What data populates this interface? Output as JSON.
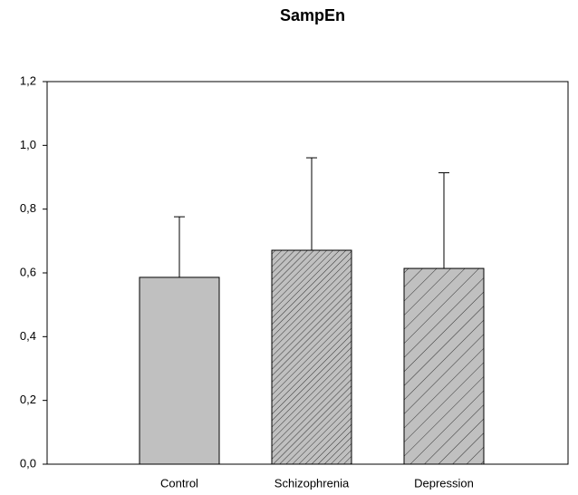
{
  "chart_data": {
    "type": "bar",
    "title": "SampEn",
    "categories": [
      "Control",
      "Schizophrenia",
      "Depression"
    ],
    "values": [
      0.586,
      0.671,
      0.614
    ],
    "errors": [
      0.19,
      0.29,
      0.3
    ],
    "colors": [
      "#c0c0c0",
      "url(#hatch-dense)",
      "url(#hatch-sparse)"
    ],
    "ylim": [
      0,
      1.2
    ],
    "yticks": [
      {
        "value": 0,
        "label": "0,0"
      },
      {
        "value": 0.2,
        "label": "0,2"
      },
      {
        "value": 0.4,
        "label": "0,4"
      },
      {
        "value": 0.6,
        "label": "0,6"
      },
      {
        "value": 0.8,
        "label": "0,8"
      },
      {
        "value": 1.0,
        "label": "1,0"
      },
      {
        "value": 1.2,
        "label": "1,2"
      }
    ],
    "grid": false
  }
}
